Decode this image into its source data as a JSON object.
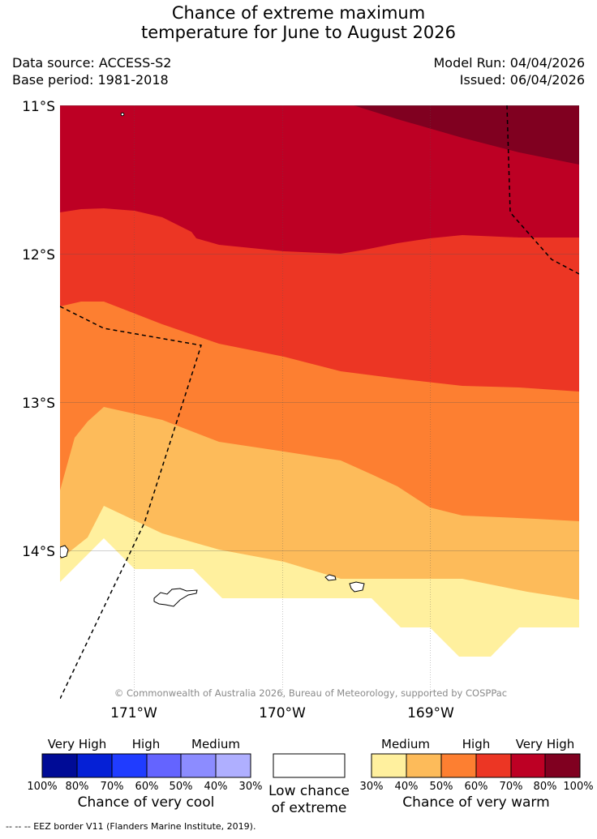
{
  "title": {
    "line1": "Chance of extreme maximum",
    "line2": "temperature for June to August 2026"
  },
  "meta": {
    "data_source": "Data source: ACCESS-S2",
    "base_period": "Base period: 1981-2018",
    "model_run": "Model Run: 04/04/2026",
    "issued": "Issued: 06/04/2026"
  },
  "map": {
    "lat_labels": [
      "11°S",
      "12°S",
      "13°S",
      "14°S"
    ],
    "lon_labels": [
      "171°W",
      "170°W",
      "169°W"
    ],
    "copyright": "© Commonwealth of Australia 2026, Bureau of Meteorology, supported by COSPPac"
  },
  "colors": {
    "warm_30_40": "#fff09e",
    "warm_40_50": "#fdbb5a",
    "warm_50_60": "#fd7f31",
    "warm_60_70": "#ec3624",
    "warm_70_80": "#bd0024",
    "warm_80_100": "#800020",
    "cool_100_80": "#000b96",
    "cool_80_70": "#0520d6",
    "cool_70_60": "#203cff",
    "cool_60_50": "#6464ff",
    "cool_50_40": "#8c8cff",
    "cool_40_30": "#afafff",
    "low": "#ffffff"
  },
  "legend": {
    "cool": {
      "categories": [
        "Very High",
        "High",
        "Medium"
      ],
      "ticks": [
        "100%",
        "80%",
        "70%",
        "60%",
        "50%",
        "40%",
        "30%"
      ],
      "title": "Chance of very cool"
    },
    "low": {
      "title_line1": "Low chance",
      "title_line2": "of extreme"
    },
    "warm": {
      "categories": [
        "Medium",
        "High",
        "Very High"
      ],
      "ticks": [
        "30%",
        "40%",
        "50%",
        "60%",
        "70%",
        "80%",
        "100%"
      ],
      "title": "Chance of very warm"
    }
  },
  "footnote": "-- -- -- EEZ border V11 (Flanders Marine Institute, 2019)."
}
